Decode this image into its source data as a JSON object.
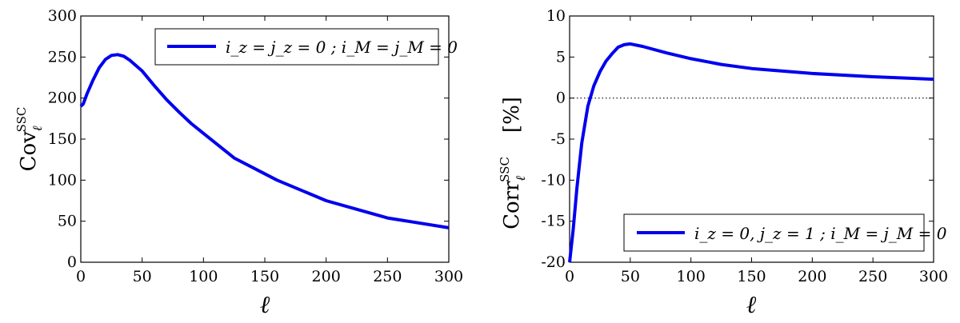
{
  "chart_data": [
    {
      "type": "line",
      "xlabel": "ℓ",
      "ylabel_main": "Cov",
      "ylabel_sub": "ℓ",
      "ylabel_sup": "SSC",
      "xlim": [
        0,
        300
      ],
      "ylim": [
        0,
        300
      ],
      "xticks": [
        0,
        50,
        100,
        150,
        200,
        250,
        300
      ],
      "yticks": [
        0,
        50,
        100,
        150,
        200,
        250,
        300
      ],
      "legend_position": "top-right",
      "color": "#0000ee",
      "series": [
        {
          "name": "i_z = j_z = 0 ; i_M = j_M = 0",
          "x": [
            0,
            2,
            5,
            10,
            15,
            20,
            25,
            30,
            35,
            40,
            50,
            60,
            70,
            80,
            90,
            100,
            125,
            160,
            200,
            250,
            300
          ],
          "y": [
            190,
            193,
            205,
            222,
            237,
            247,
            252,
            253,
            251,
            246,
            233,
            215,
            198,
            183,
            169,
            157,
            127,
            100,
            75,
            54,
            42
          ]
        }
      ]
    },
    {
      "type": "line",
      "xlabel": "ℓ",
      "ylabel_main": "Corr",
      "ylabel_sub": "ℓ",
      "ylabel_sup": "SSC",
      "ylabel_unit": "[%]",
      "xlim": [
        0,
        300
      ],
      "ylim": [
        -20,
        10
      ],
      "xticks": [
        0,
        50,
        100,
        150,
        200,
        250,
        300
      ],
      "yticks": [
        -20,
        -15,
        -10,
        -5,
        0,
        5,
        10
      ],
      "legend_position": "bottom-right",
      "zero_line": "dotted",
      "color": "#0000ee",
      "series": [
        {
          "name": "i_z = 0, j_z = 1 ; i_M = j_M = 0",
          "x": [
            0,
            3,
            6,
            10,
            15,
            20,
            25,
            30,
            35,
            40,
            45,
            50,
            60,
            80,
            100,
            125,
            150,
            200,
            250,
            300
          ],
          "y": [
            -20,
            -16,
            -11,
            -5.5,
            -1,
            1.5,
            3.2,
            4.5,
            5.4,
            6.2,
            6.5,
            6.6,
            6.3,
            5.5,
            4.8,
            4.1,
            3.6,
            3.0,
            2.6,
            2.3
          ]
        }
      ]
    }
  ]
}
